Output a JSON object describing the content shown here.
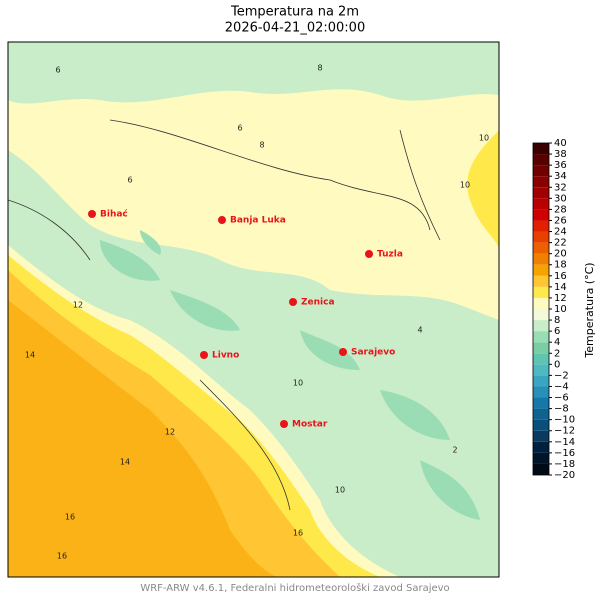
{
  "header": {
    "title": "Temperatura na 2m",
    "subtitle": "2026-04-21_02:00:00"
  },
  "cities": [
    "Bihać",
    "Banja Luka",
    "Tuzla",
    "Zenica",
    "Sarajevo",
    "Livno",
    "Mostar"
  ],
  "contour_labels": [
    6,
    8,
    10,
    10,
    12,
    14,
    14,
    16,
    16,
    16,
    12,
    6,
    10,
    10,
    8,
    6,
    4,
    2
  ],
  "colorbar": {
    "label": "Temperatura (°C)",
    "ticks": [
      {
        "value": -20,
        "label": "−20"
      },
      {
        "value": -18,
        "label": "−18"
      },
      {
        "value": -16,
        "label": "−16"
      },
      {
        "value": -14,
        "label": "−14"
      },
      {
        "value": -12,
        "label": "−12"
      },
      {
        "value": -10,
        "label": "−10"
      },
      {
        "value": -8,
        "label": "−8"
      },
      {
        "value": -6,
        "label": "−6"
      },
      {
        "value": -4,
        "label": "−4"
      },
      {
        "value": -2,
        "label": "−2"
      },
      0,
      2,
      4,
      6,
      8,
      10,
      12,
      14,
      16,
      18,
      20,
      22,
      24,
      26,
      28,
      30,
      32,
      34,
      36,
      38,
      40
    ],
    "colors": [
      "#000a14",
      "#00142a",
      "#002040",
      "#0a3a60",
      "#0a4f7a",
      "#0e6390",
      "#1478a8",
      "#2a8fb8",
      "#3aa5c0",
      "#4fb8c0",
      "#5ec6b0",
      "#79cfa3",
      "#9adcb4",
      "#c9ecc9",
      "#f3fadc",
      "#fffbc0",
      "#ffe84a",
      "#ffc533",
      "#f5a300",
      "#f08000",
      "#ec6000",
      "#e84000",
      "#e02000",
      "#d00000",
      "#b80000",
      "#a00000",
      "#880000",
      "#700000",
      "#580000",
      "#3a0000"
    ]
  },
  "footer": "WRF-ARW v4.6.1, Federalni hidrometeorološki zavod Sarajevo"
}
